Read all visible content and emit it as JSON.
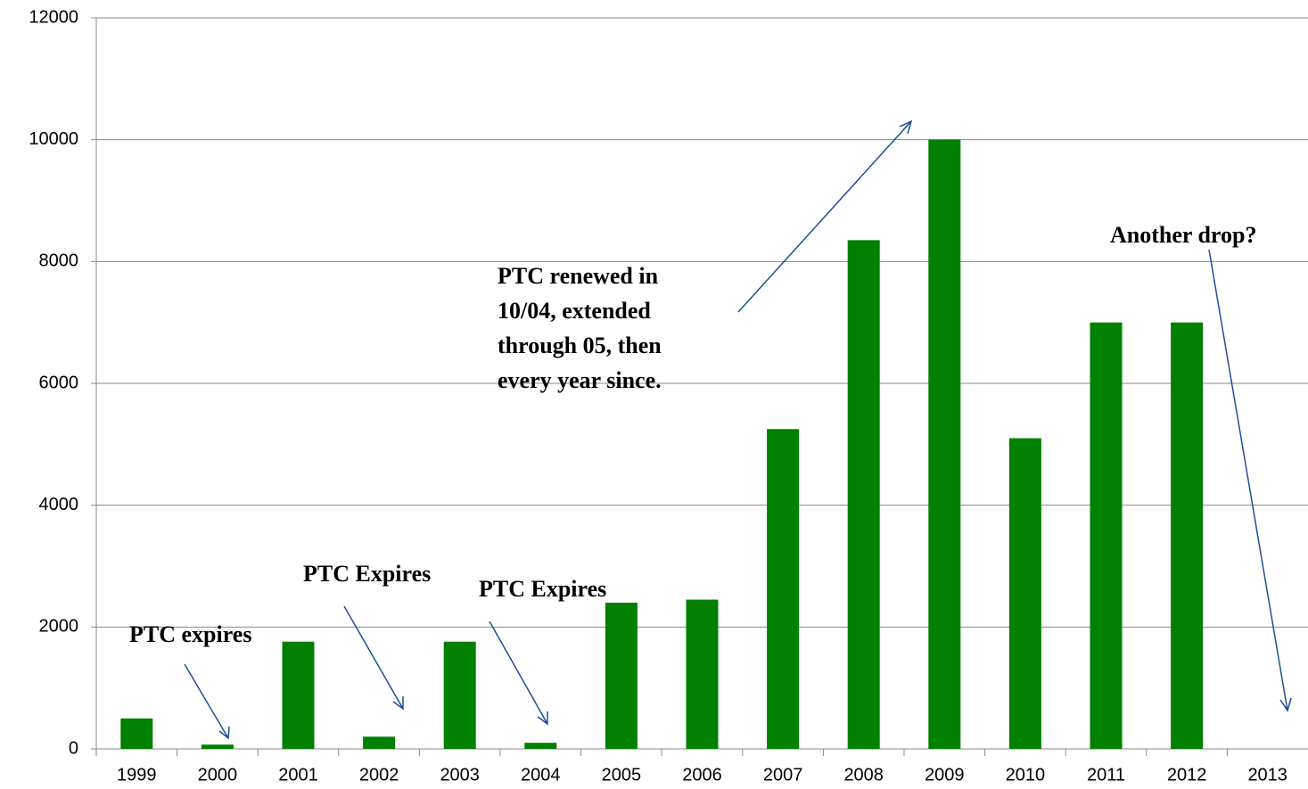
{
  "chart_data": {
    "type": "bar",
    "categories": [
      "1999",
      "2000",
      "2001",
      "2002",
      "2003",
      "2004",
      "2005",
      "2006",
      "2007",
      "2008",
      "2009",
      "2010",
      "2011",
      "2012",
      "2013"
    ],
    "values": [
      500,
      70,
      1760,
      200,
      1760,
      100,
      2400,
      2450,
      5250,
      8350,
      10000,
      5100,
      7000,
      7000,
      null
    ],
    "color": "#008000",
    "ylim": [
      0,
      12000
    ],
    "yticks": [
      0,
      2000,
      4000,
      6000,
      8000,
      10000,
      12000
    ],
    "grid": true,
    "annotations": [
      {
        "lines": [
          "PTC expires"
        ]
      },
      {
        "lines": [
          "PTC Expires"
        ]
      },
      {
        "lines": [
          "PTC Expires"
        ]
      },
      {
        "lines": [
          "PTC renewed in",
          "10/04, extended",
          "through 05, then",
          "every year since."
        ]
      },
      {
        "lines": [
          "Another drop?"
        ]
      }
    ]
  }
}
